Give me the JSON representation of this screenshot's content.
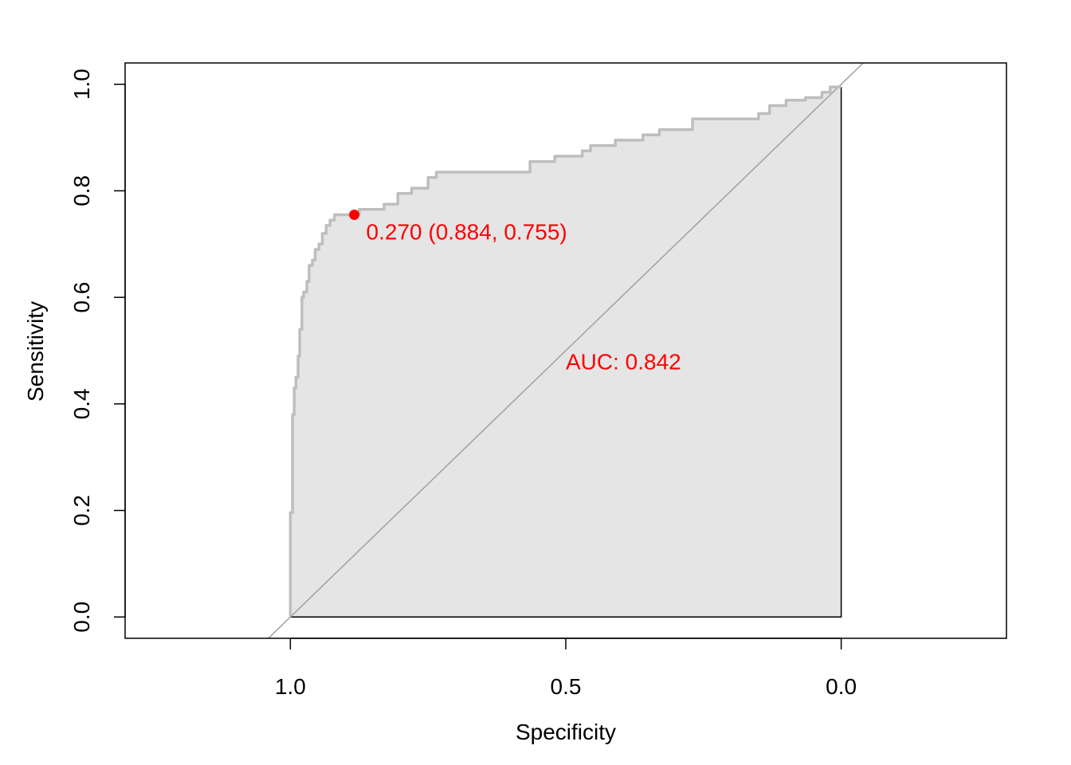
{
  "chart_data": {
    "type": "line",
    "subtype": "roc",
    "title": "",
    "xlabel": "Specificity",
    "ylabel": "Sensitivity",
    "x_reversed": true,
    "xlim": [
      1.3,
      -0.3
    ],
    "ylim": [
      -0.04,
      1.04
    ],
    "x_ticks": [
      1.0,
      0.5,
      0.0
    ],
    "x_tick_labels": [
      "1.0",
      "0.5",
      "0.0"
    ],
    "y_ticks": [
      0.0,
      0.2,
      0.4,
      0.6,
      0.8,
      1.0
    ],
    "y_tick_labels": [
      "0.0",
      "0.2",
      "0.4",
      "0.6",
      "0.8",
      "1.0"
    ],
    "grid": false,
    "colors": {
      "roc_line": "#bebebe",
      "auc_fill": "#e5e5e5",
      "diagonal": "#a0a0a0",
      "annotation": "#ff0000",
      "frame": "#000000"
    },
    "series": [
      {
        "specificity": [
          1.0,
          1.0,
          0.996,
          0.996,
          0.993,
          0.993,
          0.99,
          0.99,
          0.986,
          0.986,
          0.983,
          0.983,
          0.979,
          0.979,
          0.976,
          0.976,
          0.97,
          0.97,
          0.966,
          0.966,
          0.96,
          0.96,
          0.955,
          0.955,
          0.948,
          0.948,
          0.942,
          0.942,
          0.935,
          0.935,
          0.928,
          0.928,
          0.92,
          0.92,
          0.905,
          0.905,
          0.895,
          0.895,
          0.884,
          0.884,
          0.875,
          0.875,
          0.83,
          0.83,
          0.805,
          0.805,
          0.78,
          0.78,
          0.75,
          0.75,
          0.735,
          0.735,
          0.69,
          0.69,
          0.565,
          0.565,
          0.52,
          0.52,
          0.47,
          0.47,
          0.455,
          0.455,
          0.41,
          0.41,
          0.36,
          0.36,
          0.33,
          0.33,
          0.27,
          0.27,
          0.15,
          0.15,
          0.13,
          0.13,
          0.1,
          0.1,
          0.065,
          0.065,
          0.035,
          0.035,
          0.02,
          0.02,
          0.0,
          0.0
        ],
        "sensitivity": [
          0.0,
          0.196,
          0.196,
          0.38,
          0.38,
          0.43,
          0.43,
          0.45,
          0.45,
          0.49,
          0.49,
          0.54,
          0.54,
          0.6,
          0.6,
          0.61,
          0.61,
          0.63,
          0.63,
          0.66,
          0.66,
          0.67,
          0.67,
          0.69,
          0.69,
          0.7,
          0.7,
          0.72,
          0.72,
          0.735,
          0.735,
          0.745,
          0.745,
          0.755,
          0.755,
          0.755,
          0.755,
          0.755,
          0.755,
          0.755,
          0.755,
          0.765,
          0.765,
          0.775,
          0.775,
          0.795,
          0.795,
          0.805,
          0.805,
          0.825,
          0.825,
          0.835,
          0.835,
          0.835,
          0.835,
          0.855,
          0.855,
          0.865,
          0.865,
          0.875,
          0.875,
          0.885,
          0.885,
          0.895,
          0.895,
          0.905,
          0.905,
          0.915,
          0.915,
          0.935,
          0.935,
          0.945,
          0.945,
          0.96,
          0.96,
          0.97,
          0.97,
          0.975,
          0.975,
          0.985,
          0.985,
          0.995,
          0.995,
          0.0
        ]
      }
    ],
    "best_threshold": {
      "threshold": 0.27,
      "specificity": 0.884,
      "sensitivity": 0.755,
      "label": "0.270 (0.884, 0.755)"
    },
    "auc": {
      "value": 0.842,
      "label": "AUC: 0.842",
      "label_x": 0.5,
      "label_y": 0.48
    }
  }
}
